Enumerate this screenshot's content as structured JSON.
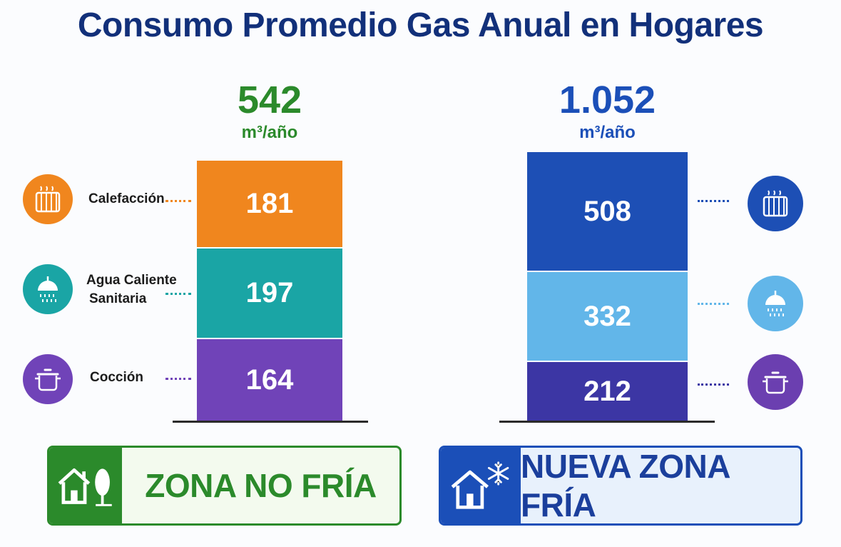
{
  "title": "Consumo Promedio Gas Anual en Hogares",
  "colors": {
    "title": "#12307a",
    "heating_left": "#f0861e",
    "water_left": "#1aa5a5",
    "cooking_left": "#7043b8",
    "heating_right": "#1d4fb5",
    "water_right": "#62b6e9",
    "cooking_right": "#3c36a4",
    "green": "#2b8a2b",
    "blue": "#1b4fb8"
  },
  "chart_data": [
    {
      "type": "bar",
      "stacked": true,
      "zone": "ZONA NO FRÍA",
      "total": "542",
      "unit": "m³/año",
      "categories": [
        "Calefacción",
        "Agua Caliente Sanitaria",
        "Cocción"
      ],
      "values": [
        181,
        197,
        164
      ]
    },
    {
      "type": "bar",
      "stacked": true,
      "zone": "NUEVA ZONA FRÍA",
      "total": "1.052",
      "unit": "m³/año",
      "categories": [
        "Calefacción",
        "Agua Caliente Sanitaria",
        "Cocción"
      ],
      "values": [
        508,
        332,
        212
      ]
    }
  ],
  "labels": {
    "heating": "Calefacción",
    "water_line1": "Agua Caliente",
    "water_line2": "Sanitaria",
    "cooking": "Cocción"
  },
  "icons": {
    "heating": "radiator-icon",
    "water": "shower-icon",
    "cooking": "pot-icon",
    "zone_left": "house-tree-icon",
    "zone_right": "house-snowflake-icon"
  }
}
